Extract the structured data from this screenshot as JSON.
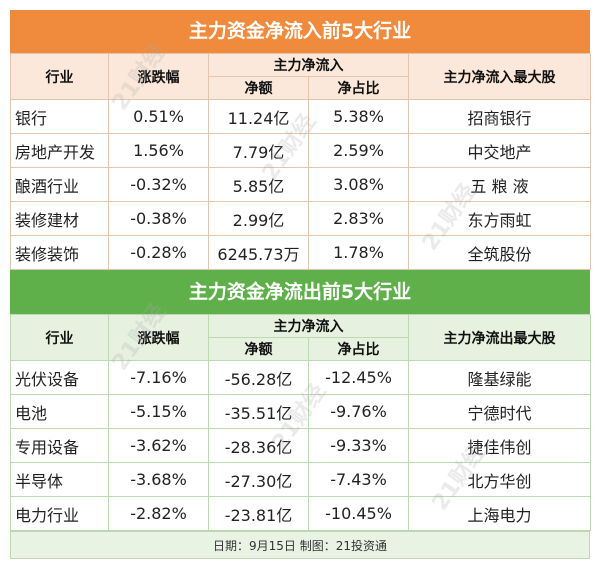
{
  "inflow": {
    "title": "主力资金净流入前5大行业",
    "headers": {
      "industry": "行业",
      "change": "涨跌幅",
      "group": "主力净流入",
      "amount": "净额",
      "ratio": "净占比",
      "top_stock": "主力净流入最大股"
    },
    "rows": [
      {
        "industry": "银行",
        "change": "0.51%",
        "amount": "11.24亿",
        "ratio": "5.38%",
        "stock": "招商银行"
      },
      {
        "industry": "房地产开发",
        "change": "1.56%",
        "amount": "7.79亿",
        "ratio": "2.59%",
        "stock": "中交地产"
      },
      {
        "industry": "酿酒行业",
        "change": "-0.32%",
        "amount": "5.85亿",
        "ratio": "3.08%",
        "stock": "五 粮 液"
      },
      {
        "industry": "装修建材",
        "change": "-0.38%",
        "amount": "2.99亿",
        "ratio": "2.83%",
        "stock": "东方雨虹"
      },
      {
        "industry": "装修装饰",
        "change": "-0.28%",
        "amount": "6245.73万",
        "ratio": "1.78%",
        "stock": "全筑股份"
      }
    ]
  },
  "outflow": {
    "title": "主力资金净流出前5大行业",
    "headers": {
      "industry": "行业",
      "change": "涨跌幅",
      "group": "主力净流入",
      "amount": "净额",
      "ratio": "净占比",
      "top_stock": "主力净流出最大股"
    },
    "rows": [
      {
        "industry": "光伏设备",
        "change": "-7.16%",
        "amount": "-56.28亿",
        "ratio": "-12.45%",
        "stock": "隆基绿能"
      },
      {
        "industry": "电池",
        "change": "-5.15%",
        "amount": "-35.51亿",
        "ratio": "-9.76%",
        "stock": "宁德时代"
      },
      {
        "industry": "专用设备",
        "change": "-3.62%",
        "amount": "-28.36亿",
        "ratio": "-9.33%",
        "stock": "捷佳伟创"
      },
      {
        "industry": "半导体",
        "change": "-3.68%",
        "amount": "-27.30亿",
        "ratio": "-7.43%",
        "stock": "北方华创"
      },
      {
        "industry": "电力行业",
        "change": "-2.82%",
        "amount": "-23.81亿",
        "ratio": "-10.45%",
        "stock": "上海电力"
      }
    ]
  },
  "footer": "日期：9月15日 制图：21投资通",
  "watermark": "21财经",
  "colors": {
    "inflow_banner": "#f08a3c",
    "outflow_banner": "#5fb04a"
  }
}
